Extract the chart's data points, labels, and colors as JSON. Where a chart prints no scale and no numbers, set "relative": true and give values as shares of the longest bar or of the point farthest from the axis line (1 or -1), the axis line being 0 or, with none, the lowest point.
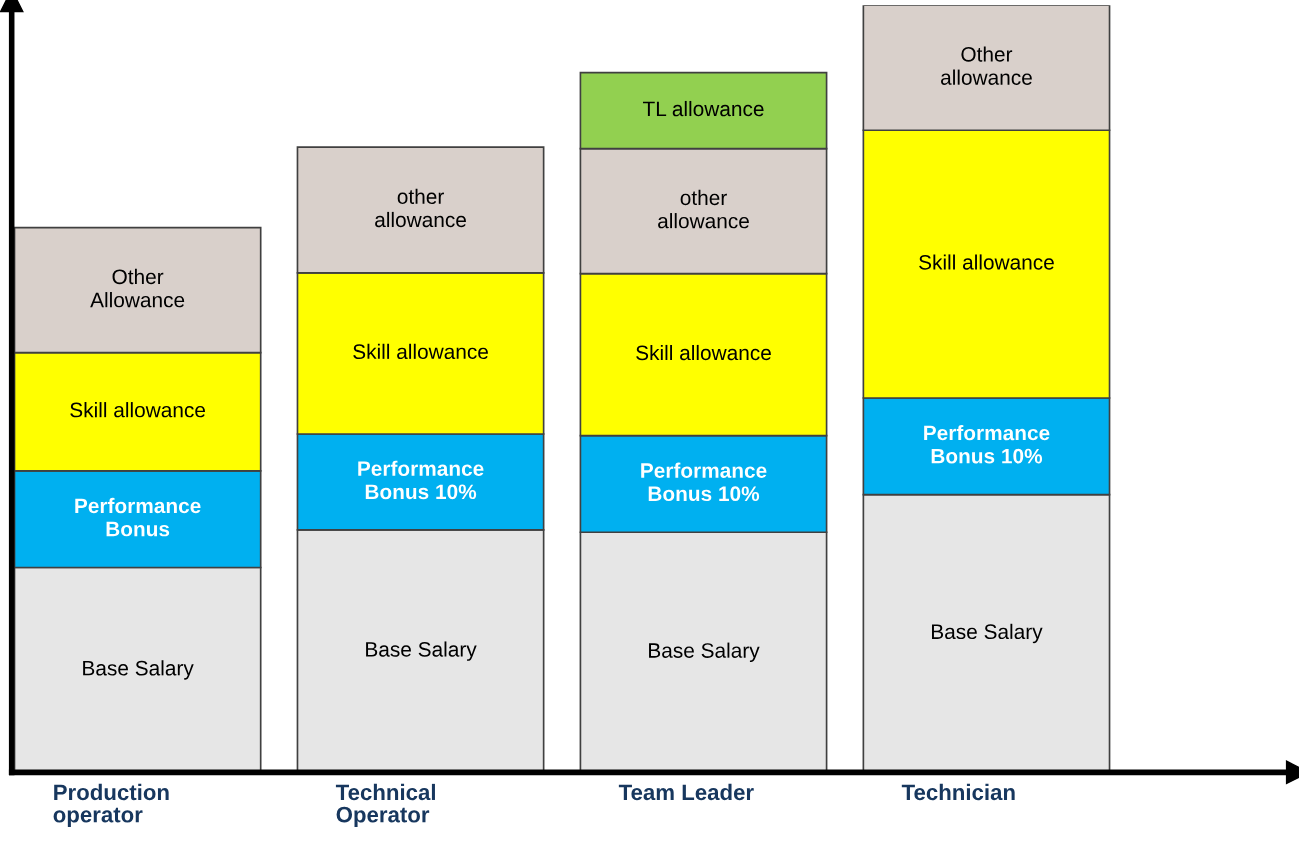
{
  "chart_data": {
    "type": "bar",
    "stacked": true,
    "relative": true,
    "categories": [
      "Production\noperator",
      "Technical\nOperator",
      "Team Leader",
      "Technician"
    ],
    "series": [
      {
        "color": "#e6e6e6",
        "values": [
          0.267,
          0.316,
          0.313,
          0.362
        ]
      },
      {
        "color": "#00b0f0",
        "values": [
          0.126,
          0.125,
          0.126,
          0.126
        ]
      },
      {
        "color": "#ffff00",
        "values": [
          0.154,
          0.21,
          0.211,
          0.349
        ]
      },
      {
        "color": "#d9d0cb",
        "values": [
          0.163,
          0.164,
          0.163,
          0.163
        ]
      },
      {
        "color": "#92d050",
        "values": [
          null,
          null,
          0.099,
          null
        ]
      }
    ],
    "annotations": [
      "Base Salary",
      "Performance\nBonus",
      "Skill allowance",
      "Other\nAllowance",
      "Base Salary",
      "Performance\nBonus 10%",
      "Skill allowance",
      "other\nallowance",
      "Base Salary",
      "Performance\nBonus 10%",
      "Skill allowance",
      "other\nallowance",
      "TL allowance",
      "Base Salary",
      "Performance\nBonus 10%",
      "Skill allowance",
      "Other\nallowance"
    ]
  }
}
